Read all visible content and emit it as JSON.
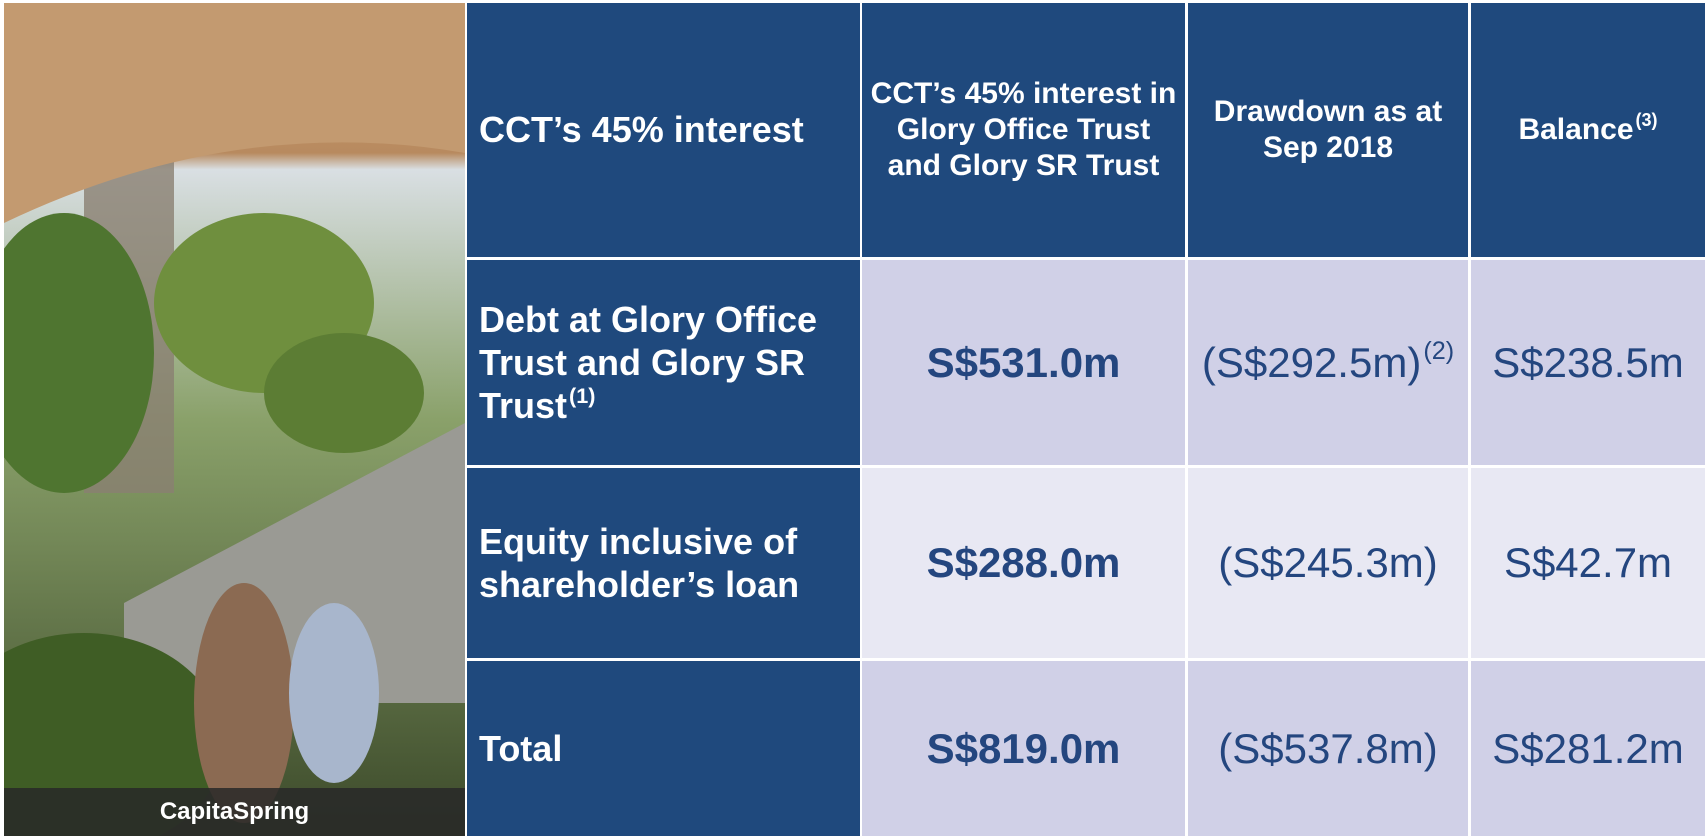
{
  "photo": {
    "caption": "CapitaSpring"
  },
  "table": {
    "header": [
      {
        "text": "CCT’s 45% interest"
      },
      {
        "text": "CCT’s 45% interest in Glory Office Trust and Glory SR Trust"
      },
      {
        "text": "Drawdown as at Sep 2018"
      },
      {
        "text": "Balance",
        "note": "(3)"
      }
    ],
    "rows": [
      [
        {
          "text": "Debt at Glory Office Trust and Glory SR Trust",
          "note": "(1)"
        },
        {
          "text": "S$531.0m"
        },
        {
          "text": "(S$292.5m)",
          "note": "(2)"
        },
        {
          "text": "S$238.5m"
        }
      ],
      [
        {
          "text": "Equity inclusive of shareholder’s loan"
        },
        {
          "text": "S$288.0m"
        },
        {
          "text": "(S$245.3m)"
        },
        {
          "text": "S$42.7m"
        }
      ],
      [
        {
          "text": "Total"
        },
        {
          "text": "S$819.0m"
        },
        {
          "text": "(S$537.8m)"
        },
        {
          "text": "S$281.2m"
        }
      ]
    ]
  }
}
